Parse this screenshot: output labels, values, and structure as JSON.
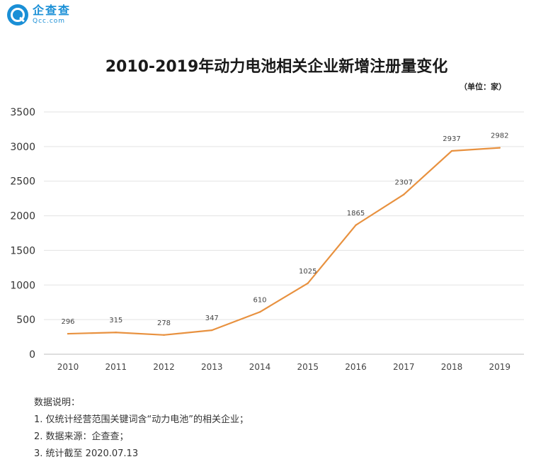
{
  "brand": {
    "name": "企查查",
    "domain": "Qcc.com"
  },
  "unit_label": "（单位：家）",
  "notes": {
    "heading": "数据说明：",
    "items": [
      "1. 仅统计经营范围关键词含“动力电池”的相关企业；",
      "2. 数据来源：企查查；",
      "3. 统计截至 2020.07.13"
    ]
  },
  "chart_data": {
    "type": "line",
    "title": "2010-2019年动力电池相关企业新增注册量变化",
    "xlabel": "",
    "ylabel": "",
    "categories": [
      "2010",
      "2011",
      "2012",
      "2013",
      "2014",
      "2015",
      "2016",
      "2017",
      "2018",
      "2019"
    ],
    "series": [
      {
        "values": [
          296,
          315,
          278,
          347,
          610,
          1025,
          1865,
          2307,
          2937,
          2982
        ],
        "color": "#e8913f"
      }
    ],
    "ylim": [
      0,
      3500
    ],
    "yticks": [
      0,
      500,
      1000,
      1500,
      2000,
      2500,
      3000,
      3500
    ],
    "grid": true,
    "legend": "none"
  }
}
